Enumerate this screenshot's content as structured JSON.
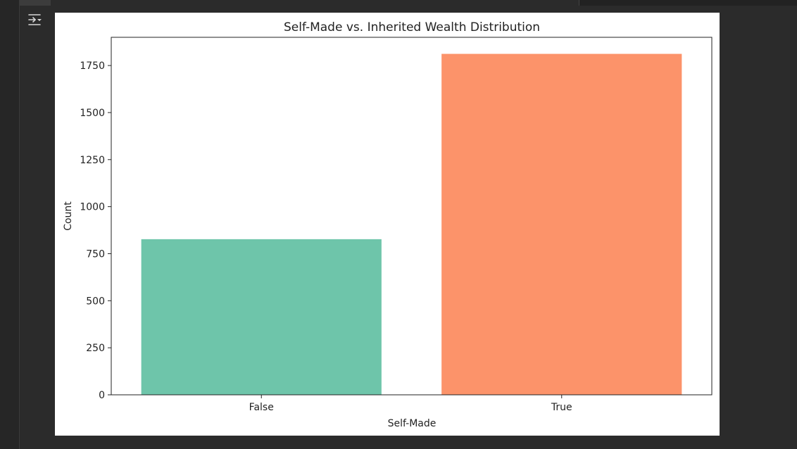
{
  "cell": {
    "output_icon": "output-toggle-icon"
  },
  "colors": {
    "background": "#2b2b2b",
    "figure": "#ffffff",
    "false_bar": "#66c2a5",
    "true_bar": "#fc8d62"
  },
  "chart_data": {
    "type": "bar",
    "title": "Self-Made vs. Inherited Wealth Distribution",
    "xlabel": "Self-Made",
    "ylabel": "Count",
    "categories": [
      "False",
      "True"
    ],
    "values": [
      827,
      1812
    ],
    "colors": [
      "#66c2a5",
      "#fc8d62"
    ],
    "ylim": [
      0,
      1900
    ],
    "yticks": [
      0,
      250,
      500,
      750,
      1000,
      1250,
      1500,
      1750
    ],
    "grid": false,
    "legend": "none"
  }
}
